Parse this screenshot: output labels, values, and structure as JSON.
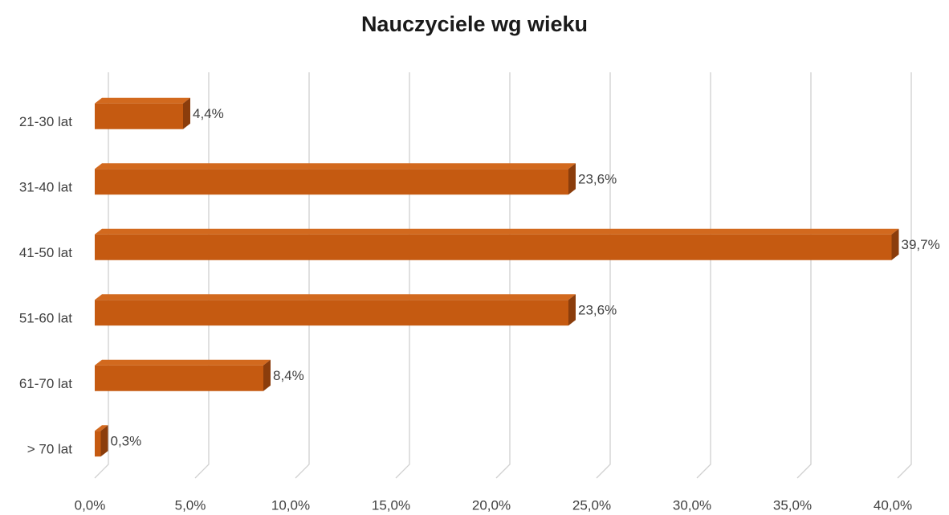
{
  "chart_data": {
    "type": "bar",
    "orientation": "horizontal",
    "title": "Nauczyciele wg wieku",
    "categories": [
      "21-30 lat",
      "31-40 lat",
      "41-50 lat",
      "51-60 lat",
      "61-70 lat",
      "> 70 lat"
    ],
    "values": [
      4.4,
      23.6,
      39.7,
      23.6,
      8.4,
      0.3
    ],
    "value_labels": [
      "4,4%",
      "23,6%",
      "39,7%",
      "23,6%",
      "8,4%",
      "0,3%"
    ],
    "color": "#c55a11",
    "xlim": [
      0,
      40
    ],
    "xticks": [
      {
        "value": 0,
        "label": "0,0%"
      },
      {
        "value": 5,
        "label": "5,0%"
      },
      {
        "value": 10,
        "label": "10,0%"
      },
      {
        "value": 15,
        "label": "15,0%"
      },
      {
        "value": 20,
        "label": "20,0%"
      },
      {
        "value": 25,
        "label": "25,0%"
      },
      {
        "value": 30,
        "label": "30,0%"
      },
      {
        "value": 35,
        "label": "35,0%"
      },
      {
        "value": 40,
        "label": "40,0%"
      }
    ],
    "grid": true
  }
}
